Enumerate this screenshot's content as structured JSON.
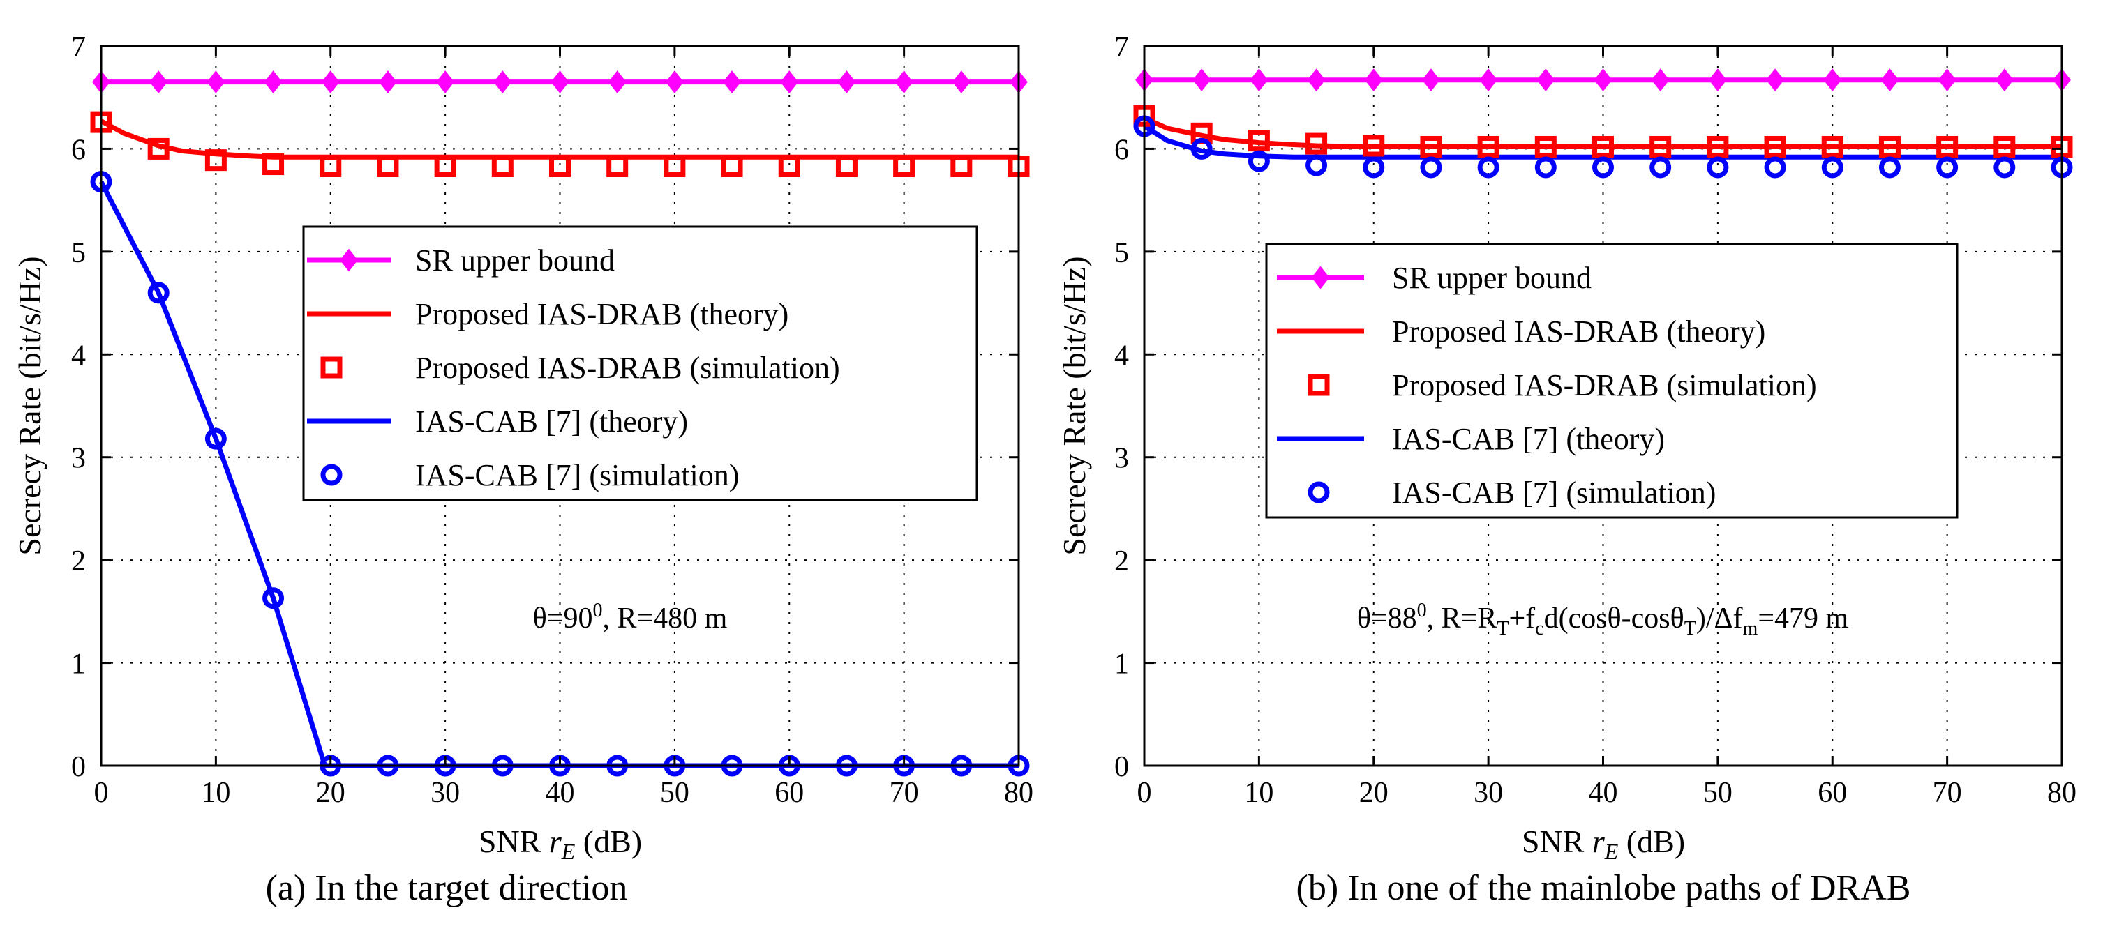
{
  "figure": {
    "captions": [
      "(a) In the target direction",
      "(b) In one of the mainlobe paths of DRAB"
    ]
  },
  "colors": {
    "upper_bound": "#ff00ff",
    "proposed": "#ff0000",
    "cab": "#0000ff",
    "grid": "#000000",
    "axes": "#000000"
  },
  "chart_data": [
    {
      "type": "line",
      "title": "",
      "caption": "(a) In the target direction",
      "xlabel_prefix": "SNR ",
      "xlabel_var": "r",
      "xlabel_sub": "E",
      "xlabel_suffix": " (dB)",
      "ylabel": "Secrecy Rate (bit/s/Hz)",
      "xlim": [
        0,
        80
      ],
      "ylim": [
        0,
        7
      ],
      "xticks": [
        0,
        10,
        20,
        30,
        40,
        50,
        60,
        70,
        80
      ],
      "yticks": [
        0,
        1,
        2,
        3,
        4,
        5,
        6,
        7
      ],
      "grid": true,
      "annotation": {
        "parts": [
          {
            "t": "θ=90"
          },
          {
            "t": "0",
            "sup": true
          },
          {
            "t": ", R=480 m"
          }
        ]
      },
      "legend": {
        "placement": "center-right",
        "entries": [
          {
            "label": "SR upper bound",
            "style": "line-diamond",
            "color": "#ff00ff"
          },
          {
            "label": "Proposed IAS-DRAB (theory)",
            "style": "line",
            "color": "#ff0000"
          },
          {
            "label": "Proposed IAS-DRAB (simulation)",
            "style": "square",
            "color": "#ff0000"
          },
          {
            "label": "IAS-CAB [7] (theory)",
            "style": "line",
            "color": "#0000ff"
          },
          {
            "label": "IAS-CAB [7] (simulation)",
            "style": "circle",
            "color": "#0000ff"
          }
        ]
      },
      "series": [
        {
          "name": "SR upper bound",
          "style": "line-diamond",
          "color": "#ff00ff",
          "x": [
            0,
            5,
            10,
            15,
            20,
            25,
            30,
            35,
            40,
            45,
            50,
            55,
            60,
            65,
            70,
            75,
            80
          ],
          "y": [
            6.65,
            6.65,
            6.65,
            6.65,
            6.65,
            6.65,
            6.65,
            6.65,
            6.65,
            6.65,
            6.65,
            6.65,
            6.65,
            6.65,
            6.65,
            6.65,
            6.65
          ]
        },
        {
          "name": "Proposed IAS-DRAB (theory)",
          "style": "line",
          "color": "#ff0000",
          "x": [
            0,
            2,
            5,
            7,
            10,
            13,
            15,
            20,
            30,
            40,
            50,
            60,
            70,
            80
          ],
          "y": [
            6.27,
            6.15,
            6.03,
            5.98,
            5.95,
            5.93,
            5.92,
            5.92,
            5.92,
            5.92,
            5.92,
            5.92,
            5.92,
            5.92
          ]
        },
        {
          "name": "Proposed IAS-DRAB (simulation)",
          "style": "square",
          "color": "#ff0000",
          "x": [
            0,
            5,
            10,
            15,
            20,
            25,
            30,
            35,
            40,
            45,
            50,
            55,
            60,
            65,
            70,
            75,
            80
          ],
          "y": [
            6.26,
            6.0,
            5.89,
            5.85,
            5.83,
            5.83,
            5.83,
            5.83,
            5.83,
            5.83,
            5.83,
            5.83,
            5.83,
            5.83,
            5.83,
            5.83,
            5.83
          ]
        },
        {
          "name": "IAS-CAB [7] (theory)",
          "style": "line",
          "color": "#0000ff",
          "x": [
            0,
            5,
            10,
            15,
            19.5,
            20,
            30,
            40,
            50,
            60,
            70,
            80
          ],
          "y": [
            5.68,
            4.6,
            3.18,
            1.63,
            0,
            0,
            0,
            0,
            0,
            0,
            0,
            0
          ]
        },
        {
          "name": "IAS-CAB [7] (simulation)",
          "style": "circle",
          "color": "#0000ff",
          "x": [
            0,
            5,
            10,
            15,
            20,
            25,
            30,
            35,
            40,
            45,
            50,
            55,
            60,
            65,
            70,
            75,
            80
          ],
          "y": [
            5.68,
            4.6,
            3.18,
            1.63,
            0,
            0,
            0,
            0,
            0,
            0,
            0,
            0,
            0,
            0,
            0,
            0,
            0
          ]
        }
      ]
    },
    {
      "type": "line",
      "title": "",
      "caption": "(b) In one of the mainlobe paths of DRAB",
      "xlabel_prefix": "SNR ",
      "xlabel_var": "r",
      "xlabel_sub": "E",
      "xlabel_suffix": " (dB)",
      "ylabel": "Secrecy Rate (bit/s/Hz)",
      "xlim": [
        0,
        80
      ],
      "ylim": [
        0,
        7
      ],
      "xticks": [
        0,
        10,
        20,
        30,
        40,
        50,
        60,
        70,
        80
      ],
      "yticks": [
        0,
        1,
        2,
        3,
        4,
        5,
        6,
        7
      ],
      "grid": true,
      "annotation": {
        "parts": [
          {
            "t": "θ=88"
          },
          {
            "t": "0",
            "sup": true
          },
          {
            "t": ", R=R"
          },
          {
            "t": "T",
            "sub": true
          },
          {
            "t": "+f"
          },
          {
            "t": "c",
            "sub": true
          },
          {
            "t": "d(cosθ-cosθ"
          },
          {
            "t": "T",
            "sub": true
          },
          {
            "t": ")/Δf"
          },
          {
            "t": "m",
            "sub": true
          },
          {
            "t": "=479 m"
          }
        ]
      },
      "legend": {
        "placement": "center-right",
        "entries": [
          {
            "label": "SR upper bound",
            "style": "line-diamond",
            "color": "#ff00ff"
          },
          {
            "label": "Proposed IAS-DRAB (theory)",
            "style": "line",
            "color": "#ff0000"
          },
          {
            "label": "Proposed IAS-DRAB (simulation)",
            "style": "square",
            "color": "#ff0000"
          },
          {
            "label": "IAS-CAB [7] (theory)",
            "style": "line",
            "color": "#0000ff"
          },
          {
            "label": "IAS-CAB [7] (simulation)",
            "style": "circle",
            "color": "#0000ff"
          }
        ]
      },
      "series": [
        {
          "name": "SR upper bound",
          "style": "line-diamond",
          "color": "#ff00ff",
          "x": [
            0,
            5,
            10,
            15,
            20,
            25,
            30,
            35,
            40,
            45,
            50,
            55,
            60,
            65,
            70,
            75,
            80
          ],
          "y": [
            6.67,
            6.67,
            6.67,
            6.67,
            6.67,
            6.67,
            6.67,
            6.67,
            6.67,
            6.67,
            6.67,
            6.67,
            6.67,
            6.67,
            6.67,
            6.67,
            6.67
          ]
        },
        {
          "name": "Proposed IAS-DRAB (theory)",
          "style": "line",
          "color": "#ff0000",
          "x": [
            0,
            2,
            5,
            7,
            10,
            13,
            15,
            20,
            30,
            40,
            50,
            60,
            70,
            80
          ],
          "y": [
            6.3,
            6.2,
            6.13,
            6.09,
            6.06,
            6.04,
            6.03,
            6.02,
            6.02,
            6.02,
            6.02,
            6.02,
            6.02,
            6.02
          ]
        },
        {
          "name": "Proposed IAS-DRAB (simulation)",
          "style": "square",
          "color": "#ff0000",
          "x": [
            0,
            5,
            10,
            15,
            20,
            25,
            30,
            35,
            40,
            45,
            50,
            55,
            60,
            65,
            70,
            75,
            80
          ],
          "y": [
            6.32,
            6.15,
            6.08,
            6.05,
            6.03,
            6.02,
            6.02,
            6.02,
            6.02,
            6.02,
            6.02,
            6.02,
            6.02,
            6.02,
            6.02,
            6.02,
            6.02
          ]
        },
        {
          "name": "IAS-CAB [7] (theory)",
          "style": "line",
          "color": "#0000ff",
          "x": [
            0,
            2,
            5,
            7,
            10,
            13,
            15,
            20,
            30,
            40,
            50,
            60,
            70,
            80
          ],
          "y": [
            6.22,
            6.08,
            5.98,
            5.95,
            5.93,
            5.92,
            5.92,
            5.92,
            5.92,
            5.92,
            5.92,
            5.92,
            5.92,
            5.92
          ]
        },
        {
          "name": "IAS-CAB [7] (simulation)",
          "style": "circle",
          "color": "#0000ff",
          "x": [
            0,
            5,
            10,
            15,
            20,
            25,
            30,
            35,
            40,
            45,
            50,
            55,
            60,
            65,
            70,
            75,
            80
          ],
          "y": [
            6.22,
            6.0,
            5.88,
            5.84,
            5.82,
            5.82,
            5.82,
            5.82,
            5.82,
            5.82,
            5.82,
            5.82,
            5.82,
            5.82,
            5.82,
            5.82,
            5.82
          ]
        }
      ]
    }
  ]
}
